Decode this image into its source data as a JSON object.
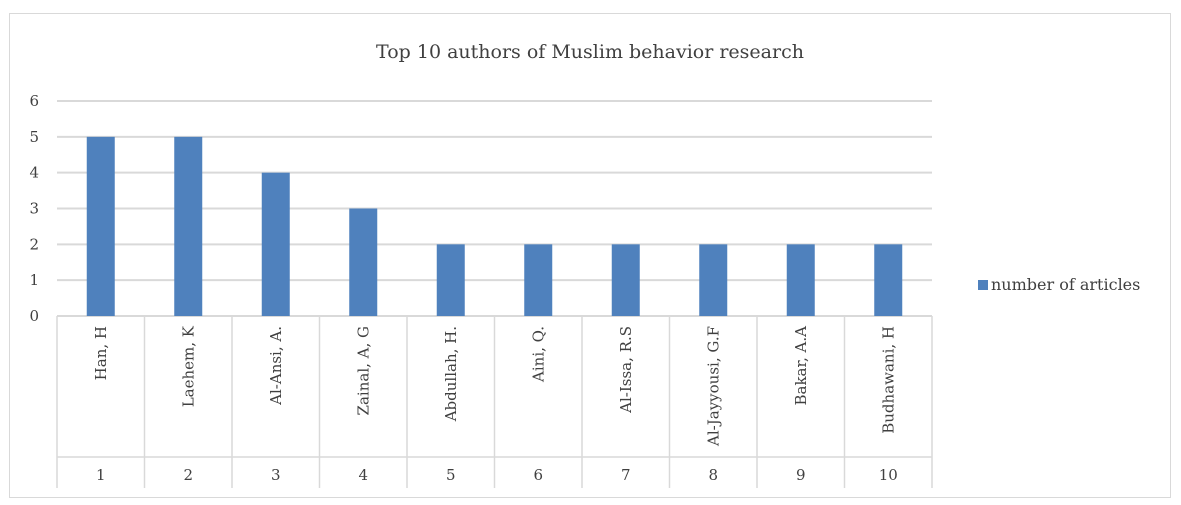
{
  "chart_data": {
    "type": "bar",
    "title": "Top 10 authors of Muslim behavior research",
    "xlabel": "",
    "ylabel": "",
    "ylim": [
      0,
      6
    ],
    "yticks": [
      0,
      1,
      2,
      3,
      4,
      5,
      6
    ],
    "grid": true,
    "legend_position": "right",
    "categories": [
      "Han, H",
      "Laehem, K",
      "Al-Ansi, A.",
      "Zainal, A, G",
      "Abdullah, H.",
      "Aini, Q.",
      "Al-Issa, R.S",
      "Al-Jayyousi, G.F",
      "Bakar, A.A",
      "Budhawani, H"
    ],
    "category_numbers": [
      "1",
      "2",
      "3",
      "4",
      "5",
      "6",
      "7",
      "8",
      "9",
      "10"
    ],
    "series": [
      {
        "name": "number of articles",
        "values": [
          5,
          5,
          4,
          3,
          2,
          2,
          2,
          2,
          2,
          2
        ],
        "color": "#4f81bd"
      }
    ]
  }
}
